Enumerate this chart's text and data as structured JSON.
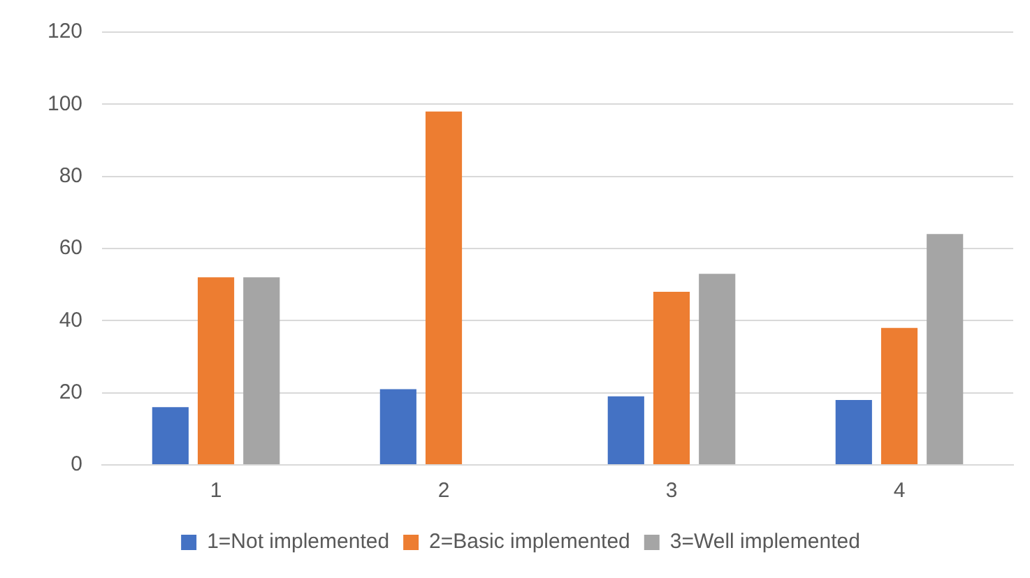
{
  "chart_data": {
    "type": "bar",
    "categories": [
      "1",
      "2",
      "3",
      "4"
    ],
    "series": [
      {
        "name": "1=Not implemented",
        "color": "#4472c4",
        "values": [
          16,
          21,
          19,
          18
        ]
      },
      {
        "name": "2=Basic implemented",
        "color": "#ed7d31",
        "values": [
          52,
          98,
          48,
          38
        ]
      },
      {
        "name": "3=Well implemented",
        "color": "#a5a5a5",
        "values": [
          52,
          null,
          53,
          64
        ]
      }
    ],
    "ylim": [
      0,
      120
    ],
    "yticks": [
      0,
      20,
      40,
      60,
      80,
      100,
      120
    ],
    "grid": "y",
    "legend": "bottom"
  }
}
